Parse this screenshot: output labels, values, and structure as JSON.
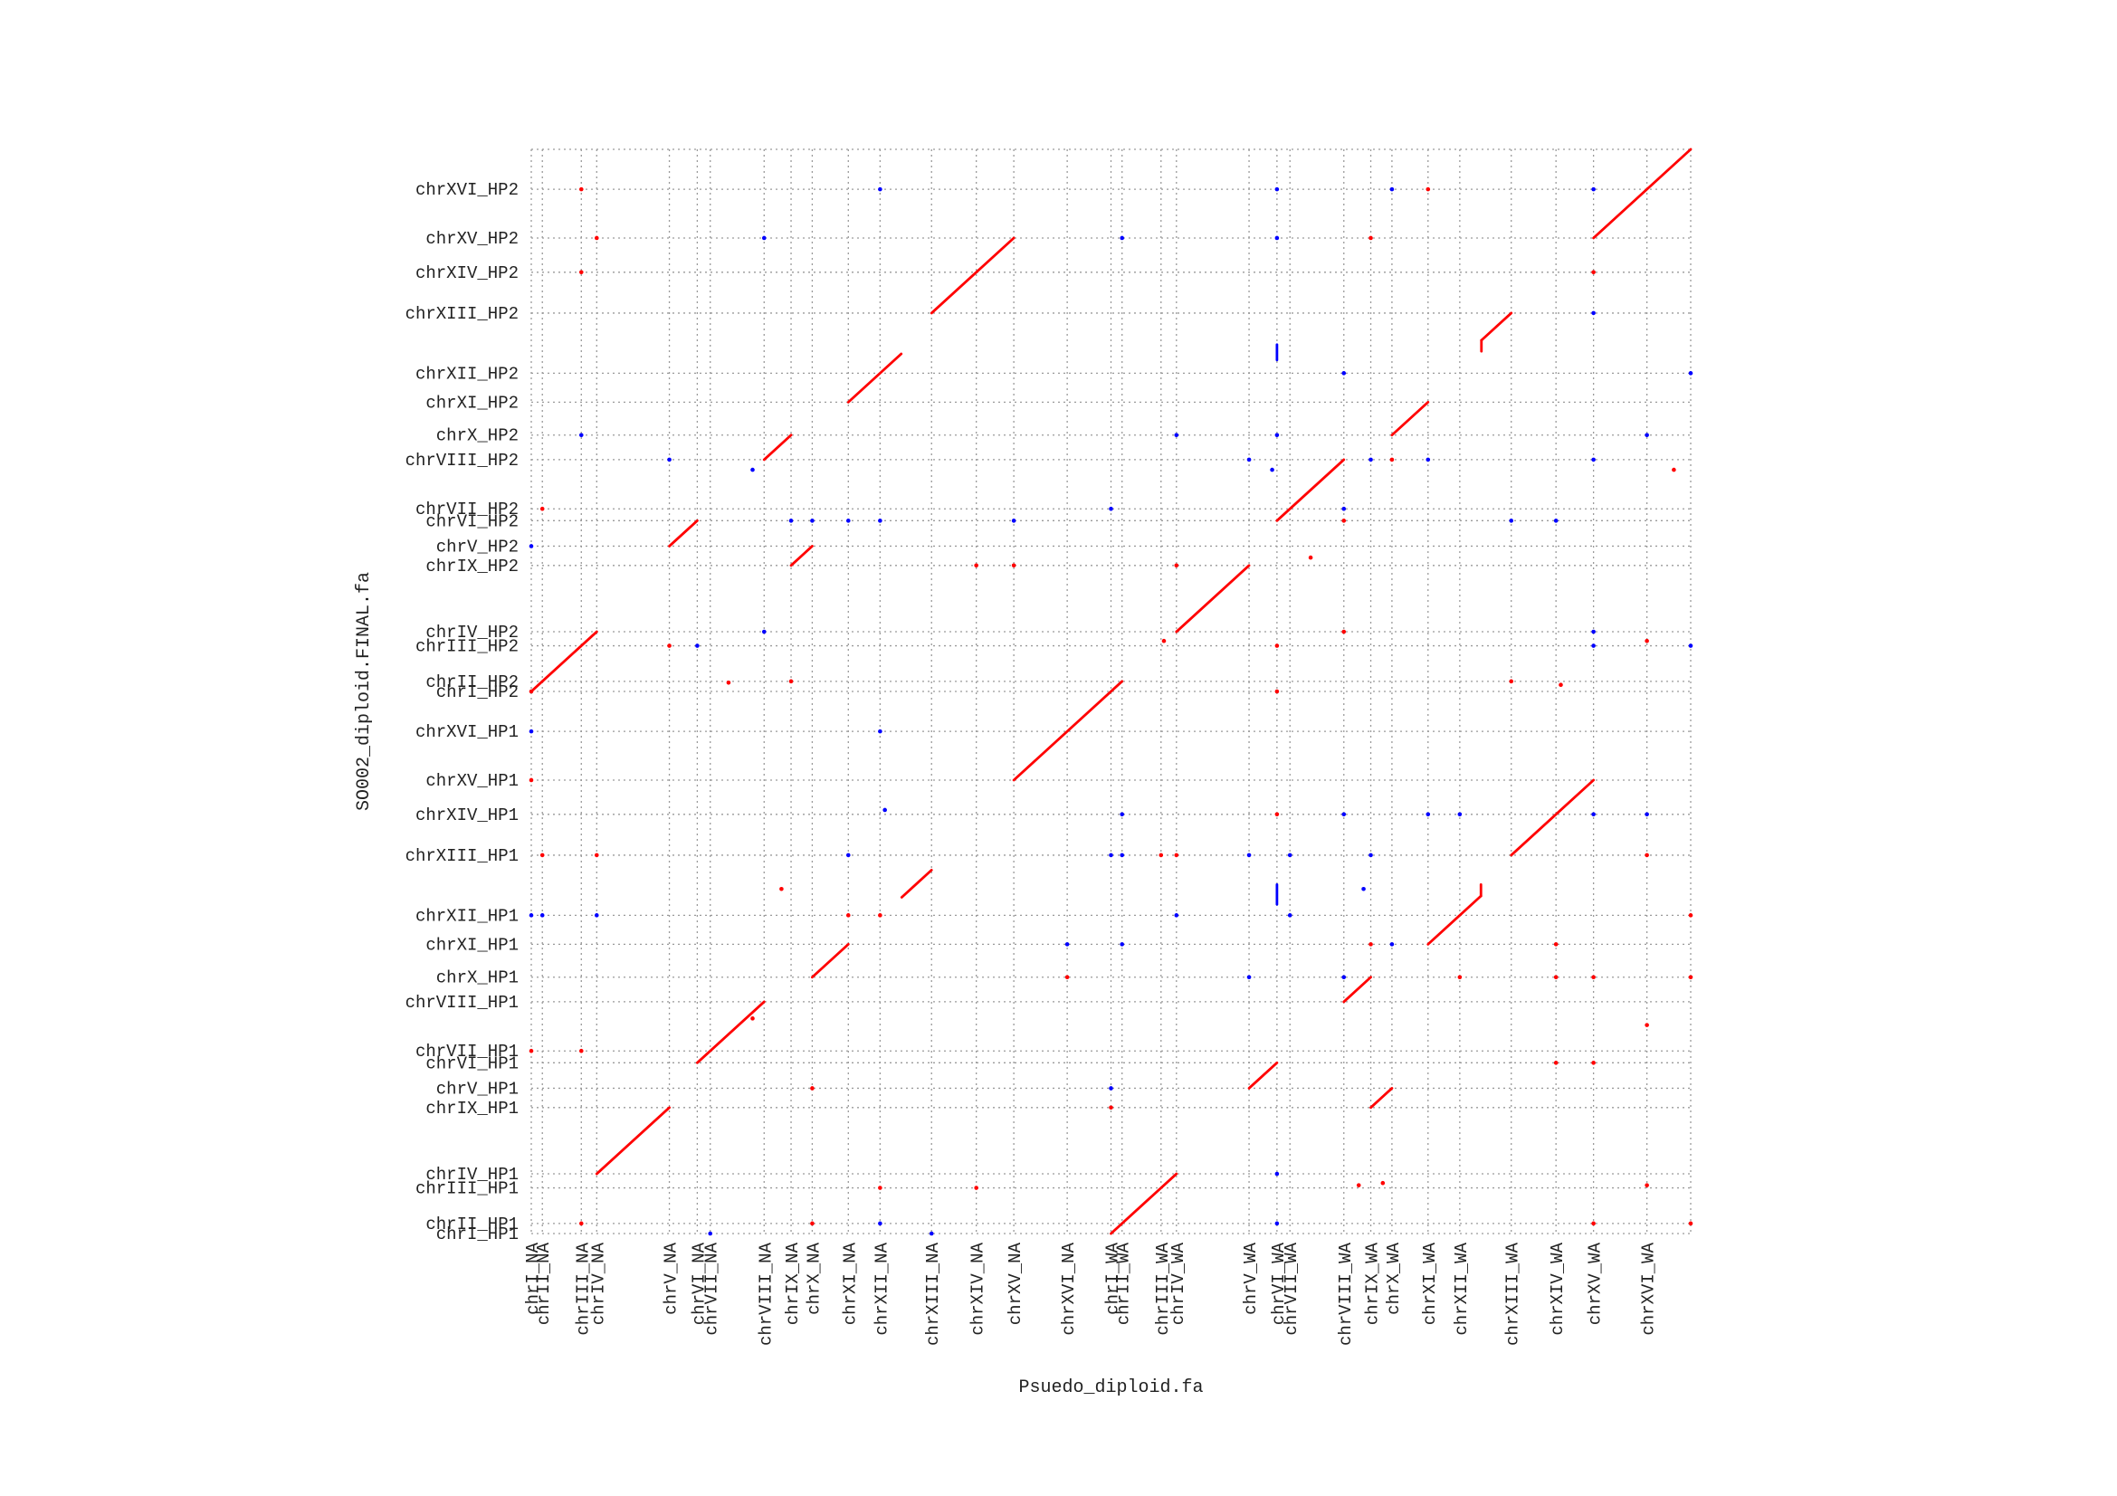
{
  "chart_data": {
    "type": "scatter",
    "subtype": "dotplot",
    "xlabel": "Psuedo_diploid.fa",
    "ylabel": "SO002_diploid.FINAL.fa",
    "grid": true,
    "colors": {
      "forward": "#ff0000",
      "reverse": "#0000ff",
      "grid": "#9a9a9a",
      "axis": "#222222"
    },
    "x_ticks": [
      {
        "label": "chrI_NA",
        "pos": 0.0
      },
      {
        "label": "chrII_NA",
        "pos": 0.23
      },
      {
        "label": "chrIII_NA",
        "pos": 1.04
      },
      {
        "label": "chrIV_NA",
        "pos": 1.36
      },
      {
        "label": "chrV_NA",
        "pos": 2.87
      },
      {
        "label": "chrVI_NA",
        "pos": 3.45
      },
      {
        "label": "chrVII_NA",
        "pos": 3.72
      },
      {
        "label": "chrVIII_NA",
        "pos": 4.84
      },
      {
        "label": "chrIX_NA",
        "pos": 5.4
      },
      {
        "label": "chrX_NA",
        "pos": 5.84
      },
      {
        "label": "chrXI_NA",
        "pos": 6.59
      },
      {
        "label": "chrXII_NA",
        "pos": 7.25
      },
      {
        "label": "chrXIII_NA",
        "pos": 8.32
      },
      {
        "label": "chrXIV_NA",
        "pos": 9.25
      },
      {
        "label": "chrXV_NA",
        "pos": 10.03
      },
      {
        "label": "chrXVI_NA",
        "pos": 11.14
      },
      {
        "label": "chrI_WA",
        "pos": 12.05
      },
      {
        "label": "chrII_WA",
        "pos": 12.28
      },
      {
        "label": "chrIII_WA",
        "pos": 13.09
      },
      {
        "label": "chrIV_WA",
        "pos": 13.41
      },
      {
        "label": "chrV_WA",
        "pos": 14.92
      },
      {
        "label": "chrVI_WA",
        "pos": 15.5
      },
      {
        "label": "chrVII_WA",
        "pos": 15.77
      },
      {
        "label": "chrVIII_WA",
        "pos": 16.89
      },
      {
        "label": "chrIX_WA",
        "pos": 17.45
      },
      {
        "label": "chrX_WA",
        "pos": 17.89
      },
      {
        "label": "chrXI_WA",
        "pos": 18.64
      },
      {
        "label": "chrXII_WA",
        "pos": 19.3
      },
      {
        "label": "chrXIII_WA",
        "pos": 20.37
      },
      {
        "label": "chrXIV_WA",
        "pos": 21.3
      },
      {
        "label": "chrXV_WA",
        "pos": 22.08
      },
      {
        "label": "chrXVI_WA",
        "pos": 23.19
      }
    ],
    "x_end": 24.1,
    "y_ticks": [
      {
        "label": "chrI_HP1",
        "pos": 0.0
      },
      {
        "label": "chrII_HP1",
        "pos": 0.23
      },
      {
        "label": "chrIII_HP1",
        "pos": 1.04
      },
      {
        "label": "chrIV_HP1",
        "pos": 1.36
      },
      {
        "label": "chrIX_HP1",
        "pos": 2.87
      },
      {
        "label": "chrV_HP1",
        "pos": 3.31
      },
      {
        "label": "chrVI_HP1",
        "pos": 3.89
      },
      {
        "label": "chrVII_HP1",
        "pos": 4.16
      },
      {
        "label": "chrVIII_HP1",
        "pos": 5.28
      },
      {
        "label": "chrX_HP1",
        "pos": 5.84
      },
      {
        "label": "chrXI_HP1",
        "pos": 6.59
      },
      {
        "label": "chrXII_HP1",
        "pos": 7.25
      },
      {
        "label": "chrXIII_HP1",
        "pos": 8.62
      },
      {
        "label": "chrXIV_HP1",
        "pos": 9.55
      },
      {
        "label": "chrXV_HP1",
        "pos": 10.33
      },
      {
        "label": "chrXVI_HP1",
        "pos": 11.44
      },
      {
        "label": "chrI_HP2",
        "pos": 12.35
      },
      {
        "label": "chrII_HP2",
        "pos": 12.58
      },
      {
        "label": "chrIII_HP2",
        "pos": 13.39
      },
      {
        "label": "chrIV_HP2",
        "pos": 13.71
      },
      {
        "label": "chrIX_HP2",
        "pos": 15.22
      },
      {
        "label": "chrV_HP2",
        "pos": 15.66
      },
      {
        "label": "chrVI_HP2",
        "pos": 16.24
      },
      {
        "label": "chrVII_HP2",
        "pos": 16.51
      },
      {
        "label": "chrVIII_HP2",
        "pos": 17.63
      },
      {
        "label": "chrX_HP2",
        "pos": 18.19
      },
      {
        "label": "chrXI_HP2",
        "pos": 18.94
      },
      {
        "label": "chrXII_HP2",
        "pos": 19.6
      },
      {
        "label": "chrXIII_HP2",
        "pos": 20.97
      },
      {
        "label": "chrXIV_HP2",
        "pos": 21.9
      },
      {
        "label": "chrXV_HP2",
        "pos": 22.68
      },
      {
        "label": "chrXVI_HP2",
        "pos": 23.79
      }
    ],
    "y_end": 24.7,
    "xlim": [
      0,
      24.1
    ],
    "ylim": [
      0,
      24.7
    ],
    "segments": [
      {
        "x": [
          0.0,
          0.23
        ],
        "y": [
          12.35,
          12.58
        ],
        "strand": "forward"
      },
      {
        "x": [
          0.23,
          1.36
        ],
        "y": [
          12.58,
          13.71
        ],
        "strand": "forward"
      },
      {
        "x": [
          1.36,
          2.87
        ],
        "y": [
          1.36,
          2.87
        ],
        "strand": "forward"
      },
      {
        "x": [
          2.87,
          3.45
        ],
        "y": [
          15.66,
          16.24
        ],
        "strand": "forward"
      },
      {
        "x": [
          3.45,
          4.84
        ],
        "y": [
          3.89,
          5.28
        ],
        "strand": "forward"
      },
      {
        "x": [
          4.84,
          5.4
        ],
        "y": [
          17.63,
          18.19
        ],
        "strand": "forward"
      },
      {
        "x": [
          5.4,
          5.84
        ],
        "y": [
          15.22,
          15.66
        ],
        "strand": "forward"
      },
      {
        "x": [
          5.84,
          6.59
        ],
        "y": [
          5.84,
          6.59
        ],
        "strand": "forward"
      },
      {
        "x": [
          6.59,
          7.69
        ],
        "y": [
          18.94,
          20.04
        ],
        "strand": "forward"
      },
      {
        "x": [
          7.7,
          8.32
        ],
        "y": [
          7.66,
          8.28
        ],
        "strand": "forward"
      },
      {
        "x": [
          8.32,
          10.03
        ],
        "y": [
          20.97,
          22.68
        ],
        "strand": "forward"
      },
      {
        "x": [
          10.03,
          12.28
        ],
        "y": [
          10.33,
          12.58
        ],
        "strand": "forward"
      },
      {
        "x": [
          12.05,
          13.41
        ],
        "y": [
          0.0,
          1.36
        ],
        "strand": "forward"
      },
      {
        "x": [
          13.41,
          14.92
        ],
        "y": [
          13.71,
          15.22
        ],
        "strand": "forward"
      },
      {
        "x": [
          14.92,
          15.5
        ],
        "y": [
          3.31,
          3.89
        ],
        "strand": "forward"
      },
      {
        "x": [
          15.5,
          16.89
        ],
        "y": [
          16.24,
          17.63
        ],
        "strand": "forward"
      },
      {
        "x": [
          16.89,
          17.45
        ],
        "y": [
          5.28,
          5.84
        ],
        "strand": "forward"
      },
      {
        "x": [
          17.45,
          17.89
        ],
        "y": [
          2.87,
          3.31
        ],
        "strand": "forward"
      },
      {
        "x": [
          17.89,
          18.64
        ],
        "y": [
          18.19,
          18.94
        ],
        "strand": "forward"
      },
      {
        "x": [
          18.64,
          19.74
        ],
        "y": [
          6.59,
          7.69
        ],
        "strand": "forward"
      },
      {
        "x": [
          19.74,
          19.74
        ],
        "y": [
          7.69,
          7.95
        ],
        "strand": "forward"
      },
      {
        "x": [
          19.75,
          20.37
        ],
        "y": [
          20.35,
          20.97
        ],
        "strand": "forward"
      },
      {
        "x": [
          19.75,
          19.75
        ],
        "y": [
          20.1,
          20.35
        ],
        "strand": "forward"
      },
      {
        "x": [
          20.37,
          22.08
        ],
        "y": [
          8.62,
          10.33
        ],
        "strand": "forward"
      },
      {
        "x": [
          22.08,
          24.1
        ],
        "y": [
          22.68,
          24.7
        ],
        "strand": "forward"
      },
      {
        "x": [
          15.5,
          15.5
        ],
        "y": [
          19.9,
          20.25
        ],
        "strand": "reverse"
      },
      {
        "x": [
          15.5,
          15.5
        ],
        "y": [
          7.5,
          7.95
        ],
        "strand": "reverse"
      }
    ],
    "points": [
      {
        "x": 1.04,
        "y": 23.79,
        "strand": "forward"
      },
      {
        "x": 7.25,
        "y": 23.79,
        "strand": "reverse"
      },
      {
        "x": 15.5,
        "y": 23.79,
        "strand": "reverse"
      },
      {
        "x": 17.89,
        "y": 23.79,
        "strand": "reverse"
      },
      {
        "x": 18.64,
        "y": 23.79,
        "strand": "forward"
      },
      {
        "x": 22.08,
        "y": 23.79,
        "strand": "reverse"
      },
      {
        "x": 1.36,
        "y": 22.68,
        "strand": "forward"
      },
      {
        "x": 4.84,
        "y": 22.68,
        "strand": "reverse"
      },
      {
        "x": 12.28,
        "y": 22.68,
        "strand": "reverse"
      },
      {
        "x": 15.5,
        "y": 22.68,
        "strand": "reverse"
      },
      {
        "x": 17.45,
        "y": 22.68,
        "strand": "forward"
      },
      {
        "x": 1.04,
        "y": 21.9,
        "strand": "forward"
      },
      {
        "x": 22.08,
        "y": 21.9,
        "strand": "forward"
      },
      {
        "x": 22.08,
        "y": 20.97,
        "strand": "reverse"
      },
      {
        "x": 16.89,
        "y": 19.6,
        "strand": "reverse"
      },
      {
        "x": 24.1,
        "y": 19.6,
        "strand": "reverse"
      },
      {
        "x": 1.04,
        "y": 18.19,
        "strand": "reverse"
      },
      {
        "x": 13.41,
        "y": 18.19,
        "strand": "reverse"
      },
      {
        "x": 15.5,
        "y": 18.19,
        "strand": "reverse"
      },
      {
        "x": 23.19,
        "y": 18.19,
        "strand": "reverse"
      },
      {
        "x": 2.87,
        "y": 17.63,
        "strand": "reverse"
      },
      {
        "x": 4.6,
        "y": 17.4,
        "strand": "reverse"
      },
      {
        "x": 14.92,
        "y": 17.63,
        "strand": "reverse"
      },
      {
        "x": 15.4,
        "y": 17.4,
        "strand": "reverse"
      },
      {
        "x": 17.45,
        "y": 17.63,
        "strand": "reverse"
      },
      {
        "x": 17.89,
        "y": 17.63,
        "strand": "forward"
      },
      {
        "x": 18.64,
        "y": 17.63,
        "strand": "reverse"
      },
      {
        "x": 22.08,
        "y": 17.63,
        "strand": "reverse"
      },
      {
        "x": 23.75,
        "y": 17.4,
        "strand": "forward"
      },
      {
        "x": 0.23,
        "y": 16.51,
        "strand": "forward"
      },
      {
        "x": 12.05,
        "y": 16.51,
        "strand": "reverse"
      },
      {
        "x": 16.89,
        "y": 16.51,
        "strand": "reverse"
      },
      {
        "x": 5.4,
        "y": 16.24,
        "strand": "reverse"
      },
      {
        "x": 5.84,
        "y": 16.24,
        "strand": "reverse"
      },
      {
        "x": 6.59,
        "y": 16.24,
        "strand": "reverse"
      },
      {
        "x": 7.25,
        "y": 16.24,
        "strand": "reverse"
      },
      {
        "x": 10.03,
        "y": 16.24,
        "strand": "reverse"
      },
      {
        "x": 16.89,
        "y": 16.24,
        "strand": "forward"
      },
      {
        "x": 20.37,
        "y": 16.24,
        "strand": "reverse"
      },
      {
        "x": 21.3,
        "y": 16.24,
        "strand": "reverse"
      },
      {
        "x": 0.0,
        "y": 15.66,
        "strand": "reverse"
      },
      {
        "x": 16.2,
        "y": 15.4,
        "strand": "forward"
      },
      {
        "x": 9.25,
        "y": 15.22,
        "strand": "forward"
      },
      {
        "x": 10.03,
        "y": 15.22,
        "strand": "forward"
      },
      {
        "x": 13.41,
        "y": 15.22,
        "strand": "forward"
      },
      {
        "x": 4.84,
        "y": 13.71,
        "strand": "reverse"
      },
      {
        "x": 16.89,
        "y": 13.71,
        "strand": "forward"
      },
      {
        "x": 22.08,
        "y": 13.71,
        "strand": "reverse"
      },
      {
        "x": 2.87,
        "y": 13.39,
        "strand": "forward"
      },
      {
        "x": 3.45,
        "y": 13.39,
        "strand": "reverse"
      },
      {
        "x": 13.15,
        "y": 13.5,
        "strand": "forward"
      },
      {
        "x": 15.5,
        "y": 13.39,
        "strand": "forward"
      },
      {
        "x": 22.08,
        "y": 13.39,
        "strand": "reverse"
      },
      {
        "x": 23.19,
        "y": 13.5,
        "strand": "forward"
      },
      {
        "x": 24.1,
        "y": 13.39,
        "strand": "reverse"
      },
      {
        "x": 4.1,
        "y": 12.55,
        "strand": "forward"
      },
      {
        "x": 5.4,
        "y": 12.58,
        "strand": "forward"
      },
      {
        "x": 20.37,
        "y": 12.58,
        "strand": "forward"
      },
      {
        "x": 21.4,
        "y": 12.5,
        "strand": "forward"
      },
      {
        "x": 0.0,
        "y": 12.35,
        "strand": "forward"
      },
      {
        "x": 15.5,
        "y": 12.35,
        "strand": "forward"
      },
      {
        "x": 0.0,
        "y": 11.44,
        "strand": "reverse"
      },
      {
        "x": 7.25,
        "y": 11.44,
        "strand": "reverse"
      },
      {
        "x": 0.0,
        "y": 10.33,
        "strand": "forward"
      },
      {
        "x": 7.35,
        "y": 9.65,
        "strand": "reverse"
      },
      {
        "x": 12.28,
        "y": 9.55,
        "strand": "reverse"
      },
      {
        "x": 15.5,
        "y": 9.55,
        "strand": "forward"
      },
      {
        "x": 16.89,
        "y": 9.55,
        "strand": "reverse"
      },
      {
        "x": 18.64,
        "y": 9.55,
        "strand": "reverse"
      },
      {
        "x": 19.3,
        "y": 9.55,
        "strand": "reverse"
      },
      {
        "x": 22.08,
        "y": 9.55,
        "strand": "reverse"
      },
      {
        "x": 23.19,
        "y": 9.55,
        "strand": "reverse"
      },
      {
        "x": 0.23,
        "y": 8.62,
        "strand": "forward"
      },
      {
        "x": 1.36,
        "y": 8.62,
        "strand": "forward"
      },
      {
        "x": 6.59,
        "y": 8.62,
        "strand": "reverse"
      },
      {
        "x": 12.05,
        "y": 8.62,
        "strand": "reverse"
      },
      {
        "x": 12.28,
        "y": 8.62,
        "strand": "reverse"
      },
      {
        "x": 13.09,
        "y": 8.62,
        "strand": "forward"
      },
      {
        "x": 13.41,
        "y": 8.62,
        "strand": "forward"
      },
      {
        "x": 14.92,
        "y": 8.62,
        "strand": "reverse"
      },
      {
        "x": 15.77,
        "y": 8.62,
        "strand": "reverse"
      },
      {
        "x": 17.45,
        "y": 8.62,
        "strand": "reverse"
      },
      {
        "x": 23.19,
        "y": 8.62,
        "strand": "forward"
      },
      {
        "x": 5.2,
        "y": 7.85,
        "strand": "forward"
      },
      {
        "x": 17.3,
        "y": 7.85,
        "strand": "reverse"
      },
      {
        "x": 0.0,
        "y": 7.25,
        "strand": "reverse"
      },
      {
        "x": 0.23,
        "y": 7.25,
        "strand": "reverse"
      },
      {
        "x": 1.36,
        "y": 7.25,
        "strand": "reverse"
      },
      {
        "x": 6.59,
        "y": 7.25,
        "strand": "forward"
      },
      {
        "x": 7.25,
        "y": 7.25,
        "strand": "forward"
      },
      {
        "x": 13.41,
        "y": 7.25,
        "strand": "reverse"
      },
      {
        "x": 15.77,
        "y": 7.25,
        "strand": "reverse"
      },
      {
        "x": 24.1,
        "y": 7.25,
        "strand": "forward"
      },
      {
        "x": 11.14,
        "y": 6.59,
        "strand": "reverse"
      },
      {
        "x": 12.28,
        "y": 6.59,
        "strand": "reverse"
      },
      {
        "x": 17.45,
        "y": 6.59,
        "strand": "forward"
      },
      {
        "x": 17.89,
        "y": 6.59,
        "strand": "reverse"
      },
      {
        "x": 21.3,
        "y": 6.59,
        "strand": "forward"
      },
      {
        "x": 11.14,
        "y": 5.84,
        "strand": "forward"
      },
      {
        "x": 14.92,
        "y": 5.84,
        "strand": "reverse"
      },
      {
        "x": 16.89,
        "y": 5.84,
        "strand": "reverse"
      },
      {
        "x": 19.3,
        "y": 5.84,
        "strand": "forward"
      },
      {
        "x": 21.3,
        "y": 5.84,
        "strand": "forward"
      },
      {
        "x": 22.08,
        "y": 5.84,
        "strand": "forward"
      },
      {
        "x": 24.1,
        "y": 5.84,
        "strand": "forward"
      },
      {
        "x": 23.19,
        "y": 4.75,
        "strand": "forward"
      },
      {
        "x": 0.0,
        "y": 4.16,
        "strand": "forward"
      },
      {
        "x": 1.04,
        "y": 4.16,
        "strand": "forward"
      },
      {
        "x": 4.6,
        "y": 4.9,
        "strand": "forward"
      },
      {
        "x": 21.3,
        "y": 3.89,
        "strand": "forward"
      },
      {
        "x": 22.08,
        "y": 3.89,
        "strand": "forward"
      },
      {
        "x": 5.84,
        "y": 3.31,
        "strand": "forward"
      },
      {
        "x": 12.05,
        "y": 3.31,
        "strand": "reverse"
      },
      {
        "x": 12.05,
        "y": 2.87,
        "strand": "forward"
      },
      {
        "x": 15.5,
        "y": 1.36,
        "strand": "reverse"
      },
      {
        "x": 7.25,
        "y": 1.04,
        "strand": "forward"
      },
      {
        "x": 9.25,
        "y": 1.04,
        "strand": "forward"
      },
      {
        "x": 17.2,
        "y": 1.1,
        "strand": "forward"
      },
      {
        "x": 17.7,
        "y": 1.15,
        "strand": "forward"
      },
      {
        "x": 23.19,
        "y": 1.1,
        "strand": "forward"
      },
      {
        "x": 1.04,
        "y": 0.23,
        "strand": "forward"
      },
      {
        "x": 5.84,
        "y": 0.23,
        "strand": "forward"
      },
      {
        "x": 7.25,
        "y": 0.23,
        "strand": "reverse"
      },
      {
        "x": 15.5,
        "y": 0.23,
        "strand": "reverse"
      },
      {
        "x": 22.08,
        "y": 0.23,
        "strand": "forward"
      },
      {
        "x": 24.1,
        "y": 0.23,
        "strand": "forward"
      },
      {
        "x": 3.72,
        "y": 0.0,
        "strand": "reverse"
      },
      {
        "x": 8.32,
        "y": 0.0,
        "strand": "reverse"
      }
    ]
  }
}
